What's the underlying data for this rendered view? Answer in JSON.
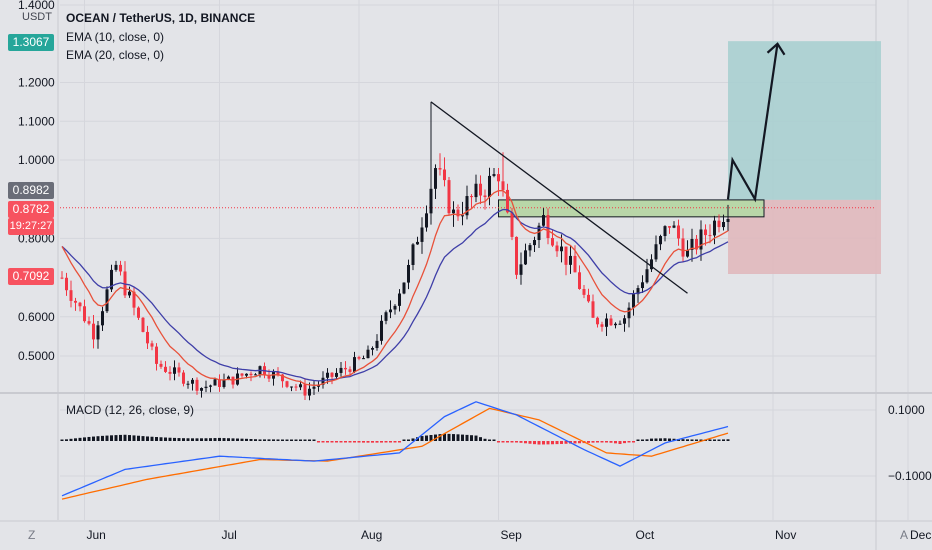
{
  "header": {
    "currency": "USDT",
    "symbol": "OCEAN / TetherUS, 1D, BINANCE",
    "ema10": "EMA (10, close, 0)",
    "ema20": "EMA (20, close, 0)"
  },
  "macd": {
    "label": "MACD (12, 26, close, 9)"
  },
  "price_badges": {
    "top_green": "1.3067",
    "ema_val": "0.8982",
    "last_price": "0.8782",
    "countdown": "19:27:27",
    "red_level": "0.7092"
  },
  "footer": {
    "left_icon": "Z",
    "right_icon": "A"
  },
  "colors": {
    "background": "#e3e4e8",
    "up": "#131722",
    "down": "#f23645",
    "ema10": "#e8513a",
    "ema20": "#3f3fa8",
    "macd_line": "#2962ff",
    "signal_line": "#ff6d00",
    "target_zone": "#a9cfd0",
    "stop_zone": "#e0b8bd",
    "entry_box": "#b9d6a8",
    "green_badge": "#26a69a",
    "red_badge": "#f7525f"
  },
  "chart_data": [
    {
      "type": "candlestick",
      "title": "OCEAN / TetherUS, 1D, BINANCE",
      "y_ticks": [
        "1.4000",
        "1.2000",
        "1.1000",
        "1.0000",
        "0.8000",
        "0.6000",
        "0.5000"
      ],
      "x_ticks": [
        "Jun",
        "Jul",
        "Aug",
        "Sep",
        "Oct",
        "Nov",
        "Dec"
      ],
      "ylim": [
        0.41,
        1.42
      ],
      "grid": true,
      "anchors_date_price": [
        [
          "May 27",
          0.7
        ],
        [
          "Jun 3",
          0.56
        ],
        [
          "Jun 8",
          0.73
        ],
        [
          "Jun 17",
          0.48
        ],
        [
          "Jun 27",
          0.42
        ],
        [
          "Jul 4",
          0.44
        ],
        [
          "Jul 10",
          0.47
        ],
        [
          "Jul 20",
          0.41
        ],
        [
          "Aug 3",
          0.5
        ],
        [
          "Aug 12",
          0.72
        ],
        [
          "Aug 18",
          0.98
        ],
        [
          "Aug 22",
          0.86
        ],
        [
          "Aug 29",
          0.93
        ],
        [
          "Sep 1",
          0.97
        ],
        [
          "Sep 5",
          0.72
        ],
        [
          "Sep 11",
          0.85
        ],
        [
          "Sep 18",
          0.71
        ],
        [
          "Sep 22",
          0.59
        ],
        [
          "Sep 29",
          0.6
        ],
        [
          "Oct 3",
          0.7
        ],
        [
          "Oct 9",
          0.84
        ],
        [
          "Oct 13",
          0.76
        ],
        [
          "Oct 22",
          0.88
        ]
      ],
      "trade_setup": {
        "entry": 0.8982,
        "stop": 0.7092,
        "target": 1.3067,
        "resistance_zone": [
          0.855,
          0.8982
        ],
        "downtrend_line": [
          [
            "Aug 17",
            1.15
          ],
          [
            "Oct 13",
            0.66
          ]
        ],
        "projection": [
          [
            "Oct 22",
            0.9
          ],
          [
            "Oct 23",
            1.0
          ],
          [
            "Oct 28",
            0.9
          ],
          [
            "Nov 2",
            1.3
          ]
        ]
      }
    },
    {
      "type": "line",
      "title": "MACD (12, 26, close, 9)",
      "y_ticks": [
        "0.1000",
        "-0.1000"
      ],
      "series": [
        {
          "name": "MACD",
          "points": [
            [
              "May 27",
              -0.16
            ],
            [
              "Jun 10",
              -0.08
            ],
            [
              "Jul 1",
              -0.04
            ],
            [
              "Jul 22",
              -0.055
            ],
            [
              "Aug 10",
              -0.03
            ],
            [
              "Aug 20",
              0.08
            ],
            [
              "Aug 27",
              0.125
            ],
            [
              "Sep 5",
              0.085
            ],
            [
              "Sep 20",
              -0.02
            ],
            [
              "Sep 28",
              -0.07
            ],
            [
              "Oct 8",
              0.0
            ],
            [
              "Oct 22",
              0.05
            ]
          ]
        },
        {
          "name": "Signal",
          "points": [
            [
              "May 27",
              -0.17
            ],
            [
              "Jun 15",
              -0.11
            ],
            [
              "Jul 10",
              -0.05
            ],
            [
              "Jul 25",
              -0.055
            ],
            [
              "Aug 15",
              -0.01
            ],
            [
              "Aug 30",
              0.105
            ],
            [
              "Sep 10",
              0.07
            ],
            [
              "Sep 25",
              -0.03
            ],
            [
              "Oct 5",
              -0.04
            ],
            [
              "Oct 22",
              0.03
            ]
          ]
        }
      ]
    }
  ]
}
